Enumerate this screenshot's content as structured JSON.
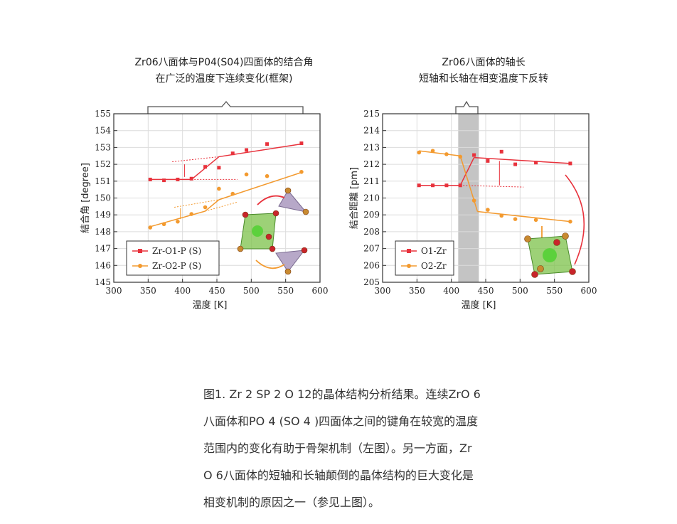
{
  "figure": {
    "left_title_line1": "Zr06八面体与P04(S04)四面体的结合角",
    "left_title_line2": "在广泛的温度下连续变化(框架)",
    "right_title_line1": "Zr06八面体的轴长",
    "right_title_line2": "短轴和长轴在相变温度下反转"
  },
  "chart_data": [
    {
      "type": "scatter",
      "xlabel": "温度 [K]",
      "ylabel": "結合角 [degree]",
      "xlim": [
        300,
        600
      ],
      "ylim": [
        145,
        155
      ],
      "xticks": [
        300,
        350,
        400,
        450,
        500,
        550,
        600
      ],
      "yticks": [
        145,
        146,
        147,
        148,
        149,
        150,
        151,
        152,
        153,
        154,
        155
      ],
      "grid": true,
      "legend_position": "bottom-left",
      "colors": {
        "Zr-O1-P (S)": "#e8323c",
        "Zr-O2-P (S)": "#f39a2f"
      },
      "series": [
        {
          "name": "Zr-O1-P (S)",
          "marker": "square",
          "x": [
            353,
            373,
            393,
            413,
            433,
            453,
            473,
            493,
            523,
            573
          ],
          "y": [
            151.1,
            151.05,
            151.1,
            151.15,
            151.85,
            151.8,
            152.65,
            152.85,
            153.2,
            153.25
          ]
        },
        {
          "name": "Zr-O2-P (S)",
          "marker": "circle",
          "x": [
            353,
            373,
            393,
            413,
            433,
            453,
            473,
            493,
            523,
            573
          ],
          "y": [
            148.25,
            148.45,
            148.6,
            149.05,
            149.45,
            150.55,
            150.25,
            151.4,
            151.3,
            151.55
          ]
        }
      ]
    },
    {
      "type": "scatter",
      "xlabel": "温度 [K]",
      "ylabel": "結合距離 [pm]",
      "xlim": [
        300,
        600
      ],
      "ylim": [
        205,
        215
      ],
      "xticks": [
        300,
        350,
        400,
        450,
        500,
        550,
        600
      ],
      "yticks": [
        205,
        206,
        207,
        208,
        209,
        210,
        211,
        212,
        213,
        214,
        215
      ],
      "grid": true,
      "legend_position": "bottom-left",
      "transition_band": [
        410,
        440
      ],
      "colors": {
        "O1-Zr": "#e8323c",
        "O2-Zr": "#f39a2f"
      },
      "series": [
        {
          "name": "O1-Zr",
          "marker": "square",
          "x": [
            353,
            373,
            393,
            413,
            433,
            453,
            473,
            493,
            523,
            573
          ],
          "y": [
            210.75,
            210.75,
            210.75,
            210.75,
            212.55,
            212.2,
            212.75,
            212.0,
            212.1,
            212.05
          ]
        },
        {
          "name": "O2-Zr",
          "marker": "circle",
          "x": [
            353,
            373,
            393,
            413,
            433,
            453,
            473,
            493,
            523,
            573
          ],
          "y": [
            212.7,
            212.8,
            212.6,
            212.45,
            209.85,
            209.3,
            208.95,
            208.75,
            208.7,
            208.6
          ]
        }
      ]
    }
  ],
  "caption": {
    "line1": "图1. Zr 2 SP 2 O 12的晶体结构分析结果。连续ZrO 6",
    "line2": "八面体和PO 4 (SO 4 )四面体之间的键角在较宽的温度",
    "line3": "范围内的变化有助于骨架机制（左图）。另一方面，Zr",
    "line4": "O 6八面体的短轴和长轴颠倒的晶体结构的巨大变化是",
    "line5": "相变机制的原因之一（参见上图）。"
  }
}
